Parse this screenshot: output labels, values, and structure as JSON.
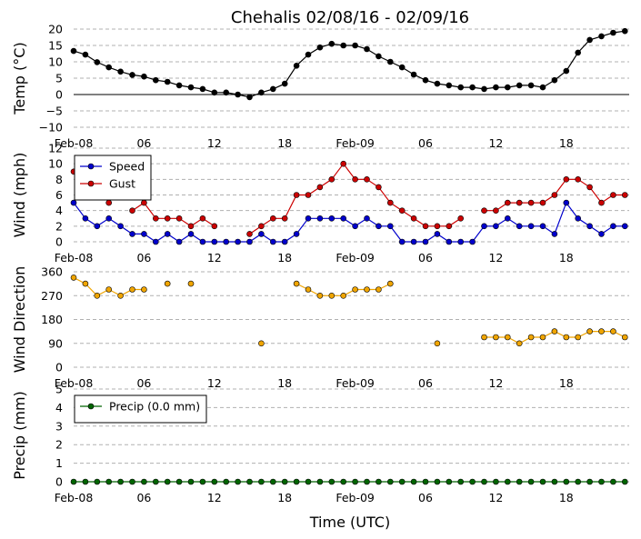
{
  "title": "Chehalis 02/08/16 - 02/09/16",
  "xlabel": "Time (UTC)",
  "x_tick_labels": [
    "Feb-08",
    "06",
    "12",
    "18",
    "Feb-09",
    "06",
    "12",
    "18"
  ],
  "chart_data": [
    {
      "type": "line",
      "ylabel": "Temp (°C)",
      "ylim": [
        -10,
        20
      ],
      "yticks": [
        -10,
        -5,
        0,
        5,
        10,
        15,
        20
      ],
      "grid": "horizontal dashed",
      "zero_line": true,
      "x_hours": [
        0,
        1,
        2,
        3,
        4,
        5,
        6,
        7,
        8,
        9,
        10,
        11,
        12,
        13,
        14,
        15,
        16,
        17,
        18,
        19,
        20,
        21,
        22,
        23,
        24,
        25,
        26,
        27,
        28,
        29,
        30,
        31,
        32,
        33,
        34,
        35,
        36,
        37,
        38,
        39,
        40,
        41,
        42,
        43,
        44,
        45,
        46,
        47
      ],
      "series": [
        {
          "name": "",
          "color": "#000000",
          "values": [
            13.3,
            12.2,
            9.9,
            8.3,
            7.0,
            6.0,
            5.5,
            4.4,
            3.9,
            2.8,
            2.2,
            1.7,
            0.6,
            0.6,
            0.0,
            -0.8,
            0.6,
            1.7,
            3.3,
            8.8,
            12.2,
            14.4,
            15.5,
            15.0,
            15.0,
            13.9,
            11.7,
            10.0,
            8.3,
            6.1,
            4.4,
            3.3,
            2.8,
            2.2,
            2.2,
            1.7,
            2.2,
            2.2,
            2.8,
            2.8,
            2.2,
            4.4,
            7.2,
            12.8,
            16.7,
            17.8,
            18.9,
            19.4
          ]
        }
      ]
    },
    {
      "type": "line",
      "ylabel": "Wind (mph)",
      "ylim": [
        0,
        12
      ],
      "yticks": [
        0,
        2,
        4,
        6,
        8,
        10,
        12
      ],
      "grid": "horizontal dashed",
      "legend": "top-left",
      "x_hours": [
        0,
        1,
        2,
        3,
        4,
        5,
        6,
        7,
        8,
        9,
        10,
        11,
        12,
        13,
        14,
        15,
        16,
        17,
        18,
        19,
        20,
        21,
        22,
        23,
        24,
        25,
        26,
        27,
        28,
        29,
        30,
        31,
        32,
        33,
        34,
        35,
        36,
        37,
        38,
        39,
        40,
        41,
        42,
        43,
        44,
        45,
        46,
        47
      ],
      "series": [
        {
          "name": "Speed",
          "color": "#0000cc",
          "values": [
            5,
            3,
            2,
            3,
            2,
            1,
            1,
            0,
            1,
            0,
            1,
            0,
            0,
            0,
            0,
            0,
            1,
            0,
            0,
            1,
            3,
            3,
            3,
            3,
            2,
            3,
            2,
            2,
            0,
            0,
            0,
            1,
            0,
            0,
            0,
            2,
            2,
            3,
            2,
            2,
            2,
            1,
            5,
            3,
            2,
            1,
            2,
            2
          ]
        },
        {
          "name": "Gust",
          "color": "#cc0000",
          "values": [
            9,
            null,
            null,
            5,
            null,
            4,
            5,
            3,
            3,
            3,
            2,
            3,
            2,
            null,
            null,
            1,
            2,
            3,
            3,
            6,
            6,
            7,
            8,
            10,
            8,
            8,
            7,
            5,
            4,
            3,
            2,
            2,
            2,
            3,
            null,
            4,
            4,
            5,
            5,
            5,
            5,
            6,
            8,
            8,
            7,
            5,
            6,
            6
          ]
        }
      ]
    },
    {
      "type": "scatter",
      "ylabel": "Wind Direction",
      "ylim": [
        0,
        360
      ],
      "yticks": [
        0,
        90,
        180,
        270,
        360
      ],
      "grid": "horizontal dashed",
      "x_hours": [
        0,
        1,
        2,
        3,
        4,
        5,
        6,
        7,
        8,
        9,
        10,
        11,
        12,
        13,
        14,
        15,
        16,
        17,
        18,
        19,
        20,
        21,
        22,
        23,
        24,
        25,
        26,
        27,
        28,
        29,
        30,
        31,
        32,
        33,
        34,
        35,
        36,
        37,
        38,
        39,
        40,
        41,
        42,
        43,
        44,
        45,
        46,
        47
      ],
      "series": [
        {
          "name": "",
          "color": "#f0a500",
          "values": [
            338,
            315,
            270,
            293,
            270,
            293,
            293,
            null,
            315,
            null,
            315,
            null,
            null,
            null,
            null,
            null,
            90,
            null,
            null,
            315,
            293,
            270,
            270,
            270,
            293,
            293,
            293,
            315,
            null,
            null,
            null,
            90,
            null,
            null,
            null,
            113,
            113,
            113,
            90,
            113,
            113,
            135,
            113,
            113,
            135,
            135,
            135,
            113
          ],
          "connected_segments": [
            [
              0,
              6
            ],
            [
              19,
              27
            ],
            [
              35,
              47
            ]
          ]
        }
      ]
    },
    {
      "type": "line",
      "ylabel": "Precip (mm)",
      "ylim": [
        0,
        5
      ],
      "yticks": [
        0,
        1,
        2,
        3,
        4,
        5
      ],
      "grid": "horizontal dashed",
      "legend": "top-left",
      "x_hours": [
        0,
        1,
        2,
        3,
        4,
        5,
        6,
        7,
        8,
        9,
        10,
        11,
        12,
        13,
        14,
        15,
        16,
        17,
        18,
        19,
        20,
        21,
        22,
        23,
        24,
        25,
        26,
        27,
        28,
        29,
        30,
        31,
        32,
        33,
        34,
        35,
        36,
        37,
        38,
        39,
        40,
        41,
        42,
        43,
        44,
        45,
        46,
        47
      ],
      "series": [
        {
          "name": "Precip (0.0 mm)",
          "color": "#006400",
          "values": [
            0,
            0,
            0,
            0,
            0,
            0,
            0,
            0,
            0,
            0,
            0,
            0,
            0,
            0,
            0,
            0,
            0,
            0,
            0,
            0,
            0,
            0,
            0,
            0,
            0,
            0,
            0,
            0,
            0,
            0,
            0,
            0,
            0,
            0,
            0,
            0,
            0,
            0,
            0,
            0,
            0,
            0,
            0,
            0,
            0,
            0,
            0,
            0
          ]
        }
      ]
    }
  ]
}
